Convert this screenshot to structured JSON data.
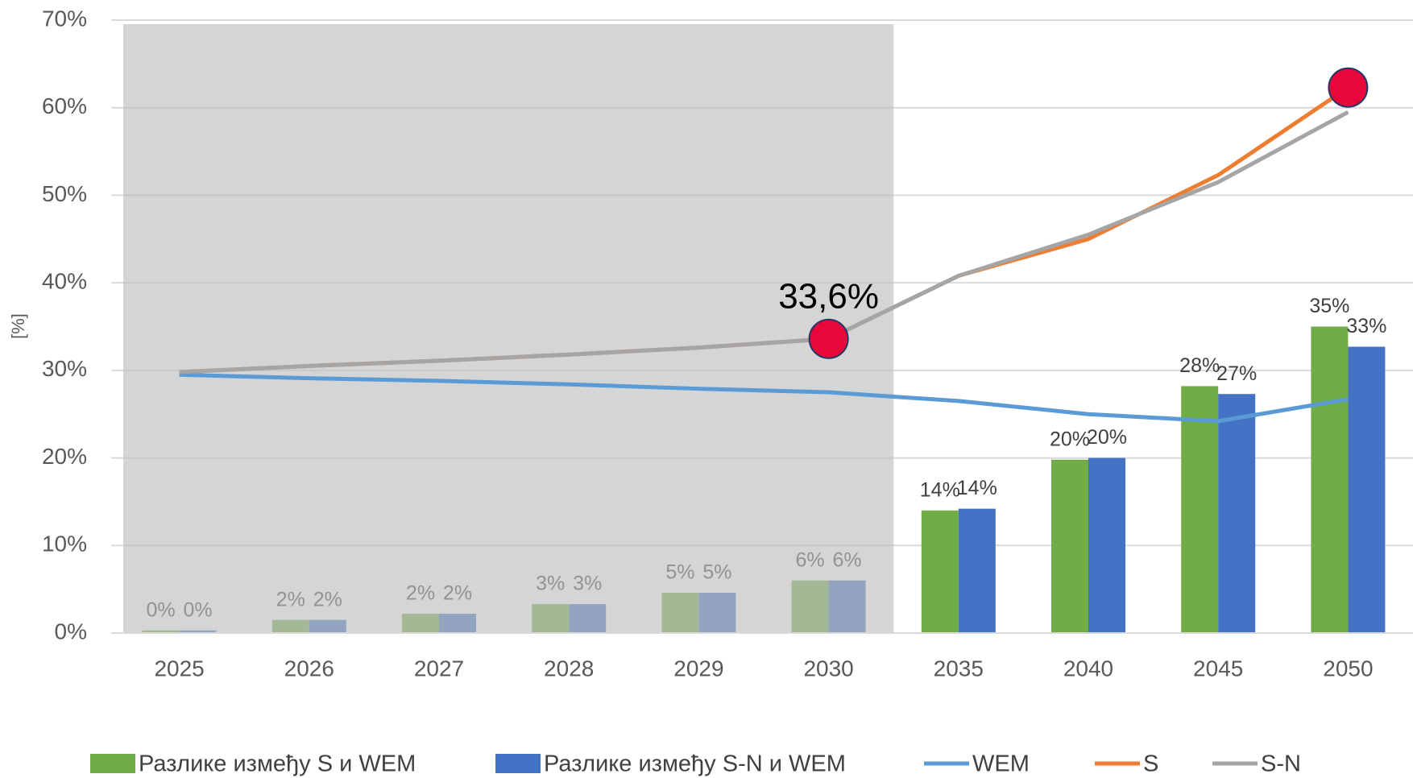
{
  "chart_data": {
    "type": "bar",
    "y_label": "[%]",
    "categories": [
      "2025",
      "2026",
      "2027",
      "2028",
      "2029",
      "2030",
      "2035",
      "2040",
      "2045",
      "2050"
    ],
    "ylim": [
      0,
      70
    ],
    "yticks": [
      {
        "value": 0,
        "label": "0%"
      },
      {
        "value": 10,
        "label": "10%"
      },
      {
        "value": 20,
        "label": "20%"
      },
      {
        "value": 30,
        "label": "30%"
      },
      {
        "value": 40,
        "label": "40%"
      },
      {
        "value": 50,
        "label": "50%"
      },
      {
        "value": 60,
        "label": "60%"
      },
      {
        "value": 70,
        "label": "70%"
      }
    ],
    "grid": true,
    "series": [
      {
        "name": "Разлике између S и WEM",
        "type": "bar",
        "color": "#70ad47",
        "values": [
          0.3,
          1.5,
          2.2,
          3.3,
          4.6,
          6,
          14,
          19.8,
          28.2,
          35
        ],
        "value_labels": [
          "0%",
          "2%",
          "2%",
          "3%",
          "5%",
          "6%",
          "14%",
          "20%",
          "28%",
          "35%"
        ]
      },
      {
        "name": "Разлике између S-N и WEM",
        "type": "bar",
        "color": "#4472c4",
        "values": [
          0.3,
          1.5,
          2.2,
          3.3,
          4.6,
          6,
          14.2,
          20,
          27.3,
          32.7
        ],
        "value_labels": [
          "0%",
          "2%",
          "2%",
          "3%",
          "5%",
          "6%",
          "14%",
          "20%",
          "27%",
          "33%"
        ]
      },
      {
        "name": "WEM",
        "type": "line",
        "color": "#5b9bd5",
        "values": [
          29.5,
          29.1,
          28.8,
          28.4,
          27.9,
          27.5,
          26.5,
          25,
          24.2,
          26.7
        ]
      },
      {
        "name": "S",
        "type": "line",
        "color": "#ed7d31",
        "values": [
          29.8,
          30.5,
          31.1,
          31.8,
          32.6,
          33.6,
          40.8,
          45,
          52.3,
          62.3
        ]
      },
      {
        "name": "S-N",
        "type": "line",
        "color": "#a5a5a5",
        "values": [
          29.8,
          30.5,
          31.1,
          31.8,
          32.6,
          33.6,
          40.8,
          45.5,
          51.5,
          59.5
        ]
      }
    ],
    "annotation": {
      "text": "33,6%",
      "series": 3,
      "index": 5
    },
    "highlight_points": [
      {
        "series": 3,
        "index": 5,
        "color": "#e8073a"
      },
      {
        "series": 3,
        "index": 9,
        "color": "#e8073a"
      }
    ]
  }
}
